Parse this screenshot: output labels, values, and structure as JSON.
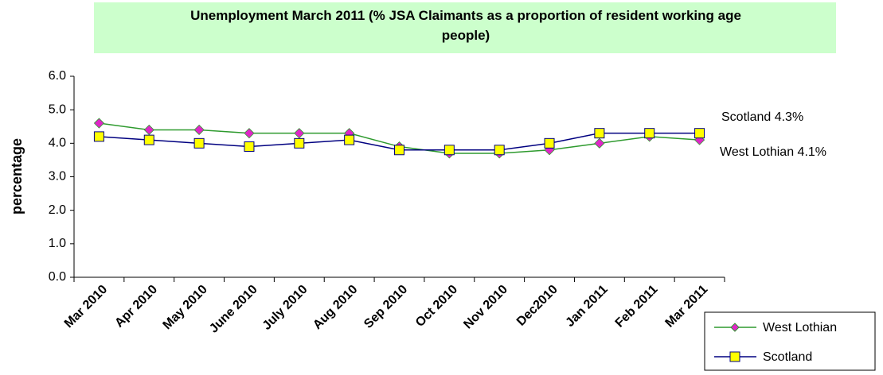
{
  "chart_data": {
    "type": "line",
    "title": "Unemployment March 2011 (% JSA Claimants as a proportion of resident working age people)",
    "ylabel": "percentage",
    "categories": [
      "Mar 2010",
      "Apr 2010",
      "May 2010",
      "June 2010",
      "July 2010",
      "Aug 2010",
      "Sep 2010",
      "Oct 2010",
      "Nov 2010",
      "Dec2010",
      "Jan 2011",
      "Feb 2011",
      "Mar 2011"
    ],
    "series": [
      {
        "name": "West Lothian",
        "color": "#2e9a2e",
        "marker": "diamond",
        "marker_color": "#e026c8",
        "values": [
          4.6,
          4.4,
          4.4,
          4.3,
          4.3,
          4.3,
          3.9,
          3.7,
          3.7,
          3.8,
          4.0,
          4.2,
          4.1
        ]
      },
      {
        "name": "Scotland",
        "color": "#000080",
        "marker": "square",
        "marker_color": "#ffff00",
        "values": [
          4.2,
          4.1,
          4.0,
          3.9,
          4.0,
          4.1,
          3.8,
          3.8,
          3.8,
          4.0,
          4.3,
          4.3,
          4.3
        ]
      }
    ],
    "ylim": [
      0,
      6
    ],
    "yticks": [
      {
        "value": 0,
        "label": "0.0"
      },
      {
        "value": 1,
        "label": "1.0"
      },
      {
        "value": 2,
        "label": "2.0"
      },
      {
        "value": 3,
        "label": "3.0"
      },
      {
        "value": 4,
        "label": "4.0"
      },
      {
        "value": 5,
        "label": "5.0"
      },
      {
        "value": 6,
        "label": "6.0"
      }
    ],
    "annotations": [
      "Scotland 4.3%",
      "West Lothian 4.1%"
    ],
    "grid": false,
    "legend": "bottom-right"
  }
}
